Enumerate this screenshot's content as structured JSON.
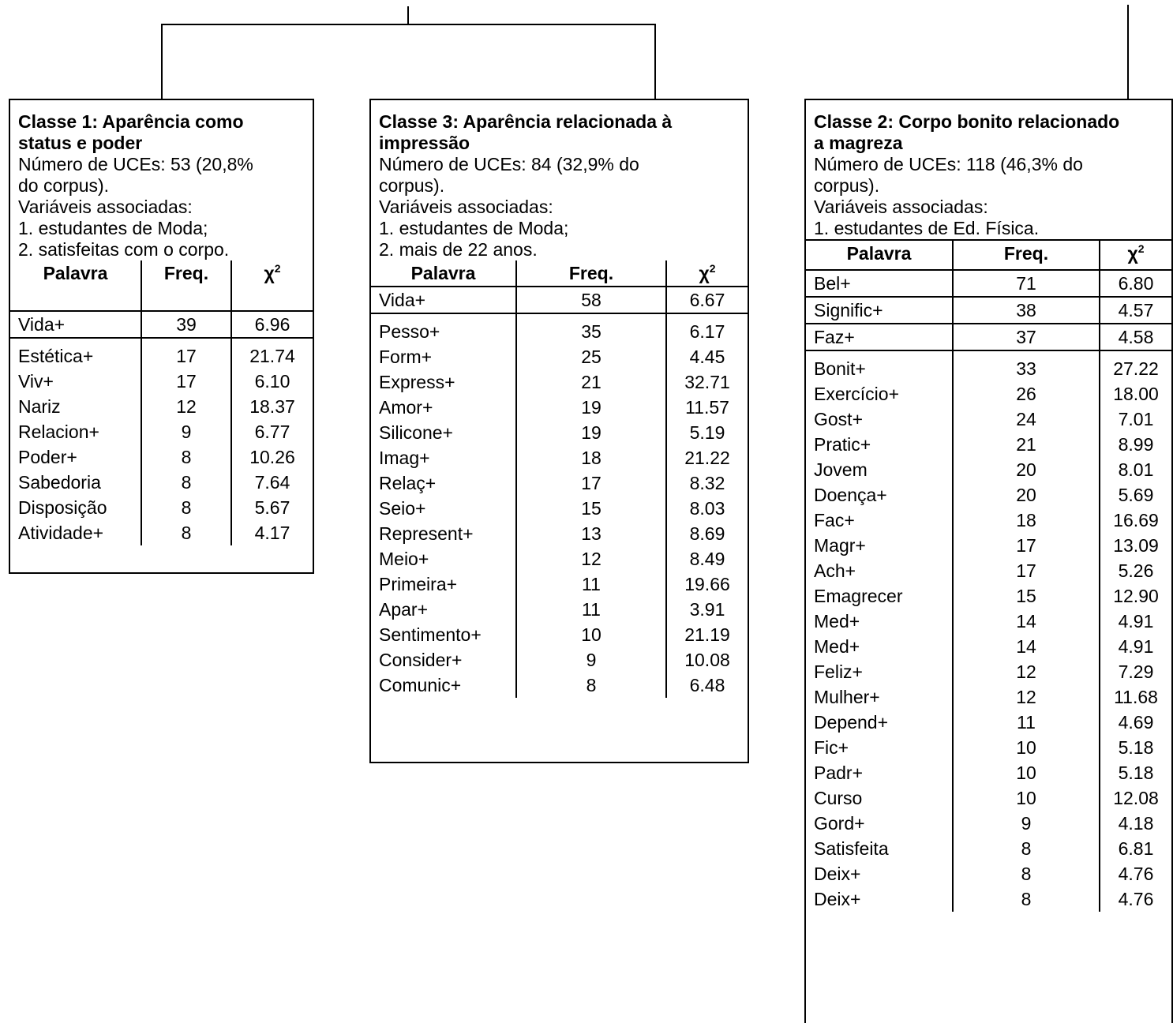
{
  "columns": [
    "Palavra",
    "Freq.",
    "χ",
    "2"
  ],
  "classes": [
    {
      "title": [
        "Classe 1: Aparência como",
        "status e poder"
      ],
      "info": [
        "Número de UCEs: 53 (20,8%",
        "do corpus).",
        "Variáveis associadas:",
        "1. estudantes de Moda;",
        "2. satisfeitas com o corpo."
      ],
      "top_rows": [
        [
          "Vida+",
          "39",
          "6.96"
        ]
      ],
      "rows": [
        [
          "Estética+",
          "17",
          "21.74"
        ],
        [
          "Viv+",
          "17",
          "6.10"
        ],
        [
          "Nariz",
          "12",
          "18.37"
        ],
        [
          "Relacion+",
          "9",
          "6.77"
        ],
        [
          "Poder+",
          "8",
          "10.26"
        ],
        [
          "Sabedoria",
          "8",
          "7.64"
        ],
        [
          "Disposição",
          "8",
          "5.67"
        ],
        [
          "Atividade+",
          "8",
          "4.17"
        ]
      ]
    },
    {
      "title": [
        "Classe 3: Aparência relacionada à",
        "impressão"
      ],
      "info": [
        "Número de UCEs: 84 (32,9% do",
        "corpus).",
        "Variáveis associadas:",
        "1. estudantes de Moda;",
        "2. mais de 22 anos."
      ],
      "top_rows": [
        [
          "Vida+",
          "58",
          "6.67"
        ]
      ],
      "rows": [
        [
          "Pesso+",
          "35",
          "6.17"
        ],
        [
          "Form+",
          "25",
          "4.45"
        ],
        [
          "Express+",
          "21",
          "32.71"
        ],
        [
          "Amor+",
          "19",
          "11.57"
        ],
        [
          "Silicone+",
          "19",
          "5.19"
        ],
        [
          "Imag+",
          "18",
          "21.22"
        ],
        [
          "Relaç+",
          "17",
          "8.32"
        ],
        [
          "Seio+",
          "15",
          "8.03"
        ],
        [
          "Represent+",
          "13",
          "8.69"
        ],
        [
          "Meio+",
          "12",
          "8.49"
        ],
        [
          "Primeira+",
          "11",
          "19.66"
        ],
        [
          "Apar+",
          "11",
          "3.91"
        ],
        [
          "Sentimento+",
          "10",
          "21.19"
        ],
        [
          "Consider+",
          "9",
          "10.08"
        ],
        [
          "Comunic+",
          "8",
          "6.48"
        ]
      ]
    },
    {
      "title": [
        "Classe 2: Corpo bonito relacionado",
        "a magreza"
      ],
      "info": [
        "Número de UCEs: 118 (46,3% do",
        "corpus).",
        "Variáveis associadas:",
        "1. estudantes de Ed. Física."
      ],
      "top_rows": [
        [
          "Bel+",
          "71",
          "6.80"
        ],
        [
          "Signific+",
          "38",
          "4.57"
        ],
        [
          "Faz+",
          "37",
          "4.58"
        ]
      ],
      "rows": [
        [
          "Bonit+",
          "33",
          "27.22"
        ],
        [
          "Exercício+",
          "26",
          "18.00"
        ],
        [
          "Gost+",
          "24",
          "7.01"
        ],
        [
          "Pratic+",
          "21",
          "8.99"
        ],
        [
          "Jovem",
          "20",
          "8.01"
        ],
        [
          "Doença+",
          "20",
          "5.69"
        ],
        [
          "Fac+",
          "18",
          "16.69"
        ],
        [
          "Magr+",
          "17",
          "13.09"
        ],
        [
          "Ach+",
          "17",
          "5.26"
        ],
        [
          "Emagrecer",
          "15",
          "12.90"
        ],
        [
          "Med+",
          "14",
          "4.91"
        ],
        [
          "Med+",
          "14",
          "4.91"
        ],
        [
          "Feliz+",
          "12",
          "7.29"
        ],
        [
          "Mulher+",
          "12",
          "11.68"
        ],
        [
          "Depend+",
          "11",
          "4.69"
        ],
        [
          "Fic+",
          "10",
          "5.18"
        ],
        [
          "Padr+",
          "10",
          "5.18"
        ],
        [
          "Curso",
          "10",
          "12.08"
        ],
        [
          "Gord+",
          "9",
          "4.18"
        ],
        [
          "Satisfeita",
          "8",
          "6.81"
        ],
        [
          "Deix+",
          "8",
          "4.76"
        ],
        [
          "Deix+",
          "8",
          "4.76"
        ]
      ]
    }
  ]
}
